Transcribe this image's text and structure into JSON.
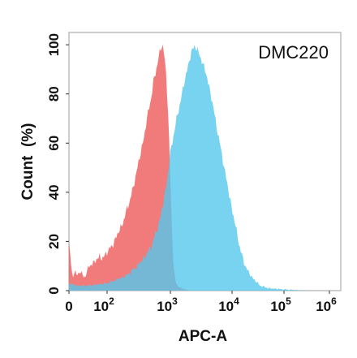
{
  "chart_data": {
    "type": "area",
    "panel_label": "DMC220",
    "xlabel": "APC-A",
    "ylabel": "Count  (%)",
    "x_scale": "biexponential",
    "xlim": [
      0,
      1000000
    ],
    "ylim": [
      0,
      105
    ],
    "x_tick_labels": [
      {
        "value": 0,
        "base": "0",
        "exp": ""
      },
      {
        "value": 100,
        "base": "10",
        "exp": "2"
      },
      {
        "value": 1000,
        "base": "10",
        "exp": "3"
      },
      {
        "value": 10000,
        "base": "10",
        "exp": "4"
      },
      {
        "value": 100000,
        "base": "10",
        "exp": "5"
      },
      {
        "value": 1000000,
        "base": "10",
        "exp": "6"
      }
    ],
    "y_ticks": [
      0,
      20,
      40,
      60,
      80,
      100
    ],
    "legend": "none",
    "grid": false,
    "series": [
      {
        "color": "#ee5a5a",
        "fill_opacity": 0.8,
        "points": [
          [
            0,
            20
          ],
          [
            5,
            12
          ],
          [
            10,
            4
          ],
          [
            15,
            9
          ],
          [
            20,
            6
          ],
          [
            30,
            8
          ],
          [
            40,
            5
          ],
          [
            50,
            9
          ],
          [
            60,
            11
          ],
          [
            70,
            12
          ],
          [
            80,
            14
          ],
          [
            90,
            13
          ],
          [
            100,
            16
          ],
          [
            120,
            18
          ],
          [
            140,
            22
          ],
          [
            160,
            25
          ],
          [
            180,
            28
          ],
          [
            200,
            32
          ],
          [
            230,
            37
          ],
          [
            260,
            42
          ],
          [
            300,
            50
          ],
          [
            340,
            56
          ],
          [
            380,
            62
          ],
          [
            420,
            69
          ],
          [
            460,
            74
          ],
          [
            500,
            79
          ],
          [
            540,
            85
          ],
          [
            580,
            88
          ],
          [
            620,
            92
          ],
          [
            660,
            96
          ],
          [
            700,
            98
          ],
          [
            750,
            100
          ],
          [
            800,
            96
          ],
          [
            850,
            89
          ],
          [
            900,
            78
          ],
          [
            950,
            63
          ],
          [
            1000,
            45
          ],
          [
            1050,
            28
          ],
          [
            1100,
            15
          ],
          [
            1150,
            8
          ],
          [
            1200,
            4
          ],
          [
            1300,
            2
          ],
          [
            1500,
            1
          ],
          [
            2000,
            0
          ]
        ]
      },
      {
        "color": "#56c8ee",
        "fill_opacity": 0.8,
        "points": [
          [
            0,
            3
          ],
          [
            20,
            2
          ],
          [
            50,
            2
          ],
          [
            100,
            3
          ],
          [
            200,
            6
          ],
          [
            300,
            10
          ],
          [
            400,
            14
          ],
          [
            500,
            18
          ],
          [
            600,
            24
          ],
          [
            700,
            30
          ],
          [
            800,
            38
          ],
          [
            900,
            46
          ],
          [
            1000,
            56
          ],
          [
            1100,
            62
          ],
          [
            1200,
            67
          ],
          [
            1400,
            75
          ],
          [
            1600,
            82
          ],
          [
            1800,
            88
          ],
          [
            2000,
            93
          ],
          [
            2200,
            97
          ],
          [
            2500,
            100
          ],
          [
            2800,
            97
          ],
          [
            3200,
            94
          ],
          [
            3600,
            90
          ],
          [
            4000,
            86
          ],
          [
            4500,
            80
          ],
          [
            5000,
            74
          ],
          [
            5600,
            67
          ],
          [
            6300,
            60
          ],
          [
            7000,
            54
          ],
          [
            8000,
            46
          ],
          [
            9000,
            39
          ],
          [
            10000,
            33
          ],
          [
            12000,
            25
          ],
          [
            14000,
            18
          ],
          [
            16000,
            13
          ],
          [
            19000,
            9
          ],
          [
            23000,
            6
          ],
          [
            28000,
            4
          ],
          [
            35000,
            2
          ],
          [
            50000,
            1
          ],
          [
            100000,
            0.5
          ],
          [
            300000,
            0
          ]
        ]
      }
    ]
  }
}
